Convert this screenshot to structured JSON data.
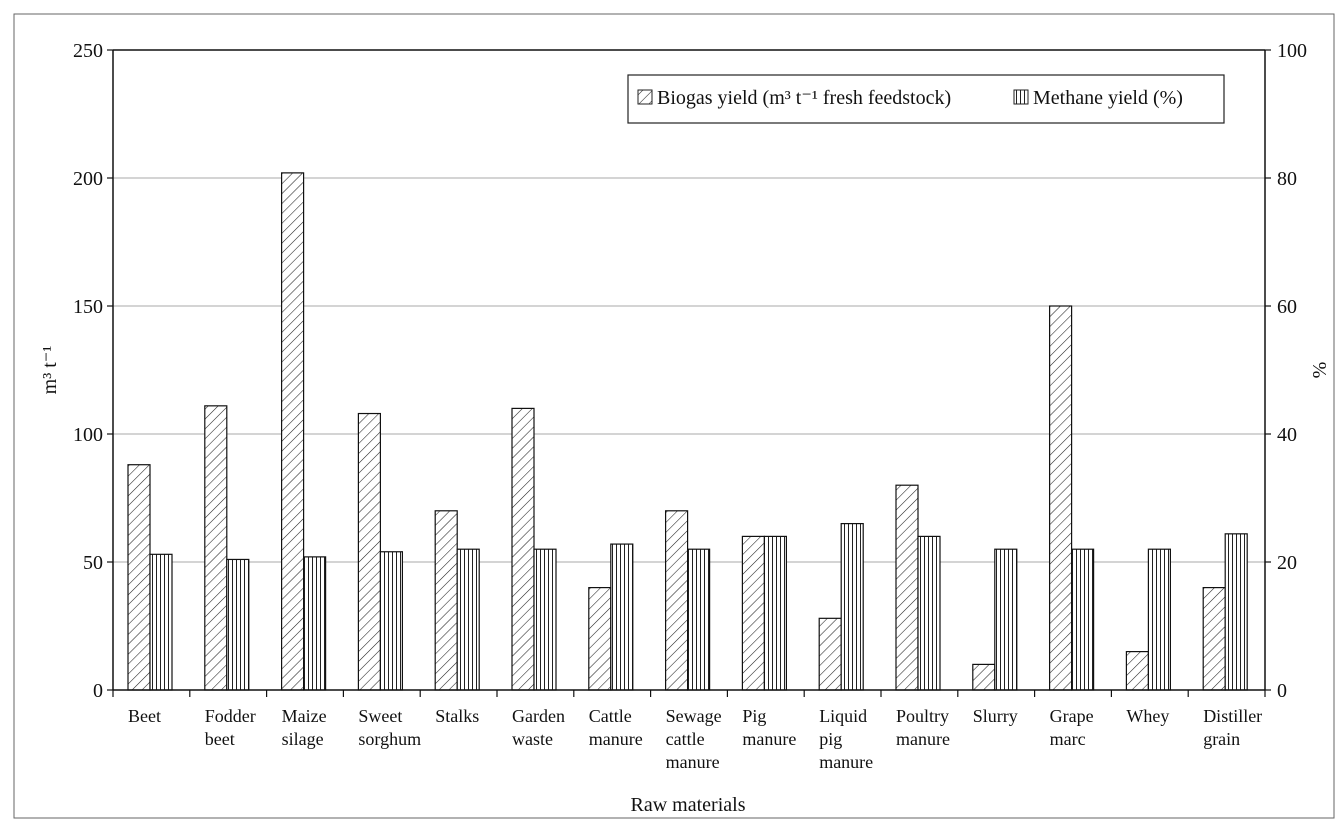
{
  "chart_data": {
    "type": "bar",
    "categories": [
      [
        "Beet"
      ],
      [
        "Fodder",
        "beet"
      ],
      [
        "Maize",
        "silage"
      ],
      [
        "Sweet",
        "sorghum"
      ],
      [
        "Stalks"
      ],
      [
        "Garden",
        "waste"
      ],
      [
        "Cattle",
        "manure"
      ],
      [
        "Sewage",
        "cattle",
        "manure"
      ],
      [
        "Pig",
        "manure"
      ],
      [
        "Liquid",
        "pig",
        "manure"
      ],
      [
        "Poultry",
        "manure"
      ],
      [
        "Slurry"
      ],
      [
        "Grape",
        "marc"
      ],
      [
        "Whey"
      ],
      [
        "Distiller",
        "grain"
      ]
    ],
    "series": [
      {
        "name": "Biogas yield (m³ t⁻¹ fresh feedstock)",
        "axis": "left",
        "pattern": "diagonal",
        "values": [
          88,
          111,
          202,
          108,
          70,
          110,
          40,
          70,
          60,
          28,
          80,
          10,
          150,
          15,
          40
        ]
      },
      {
        "name": "Methane yield (%)",
        "axis": "right",
        "pattern": "vertical",
        "values": [
          21.2,
          20.4,
          20.8,
          21.6,
          22,
          22,
          22.8,
          22,
          24,
          26,
          24,
          22,
          22,
          22,
          24.4
        ]
      }
    ],
    "xlabel": "Raw materials",
    "ylabel_left": "m³ t⁻¹",
    "ylabel_right": "%",
    "ylim_left": [
      0,
      250
    ],
    "ylim_right": [
      0,
      100
    ],
    "yticks_left": [
      "0",
      "50",
      "100",
      "150",
      "200",
      "250"
    ],
    "yticks_right": [
      "0",
      "20",
      "40",
      "60",
      "80",
      "100"
    ],
    "grid": true,
    "legend_position": "top-right"
  }
}
